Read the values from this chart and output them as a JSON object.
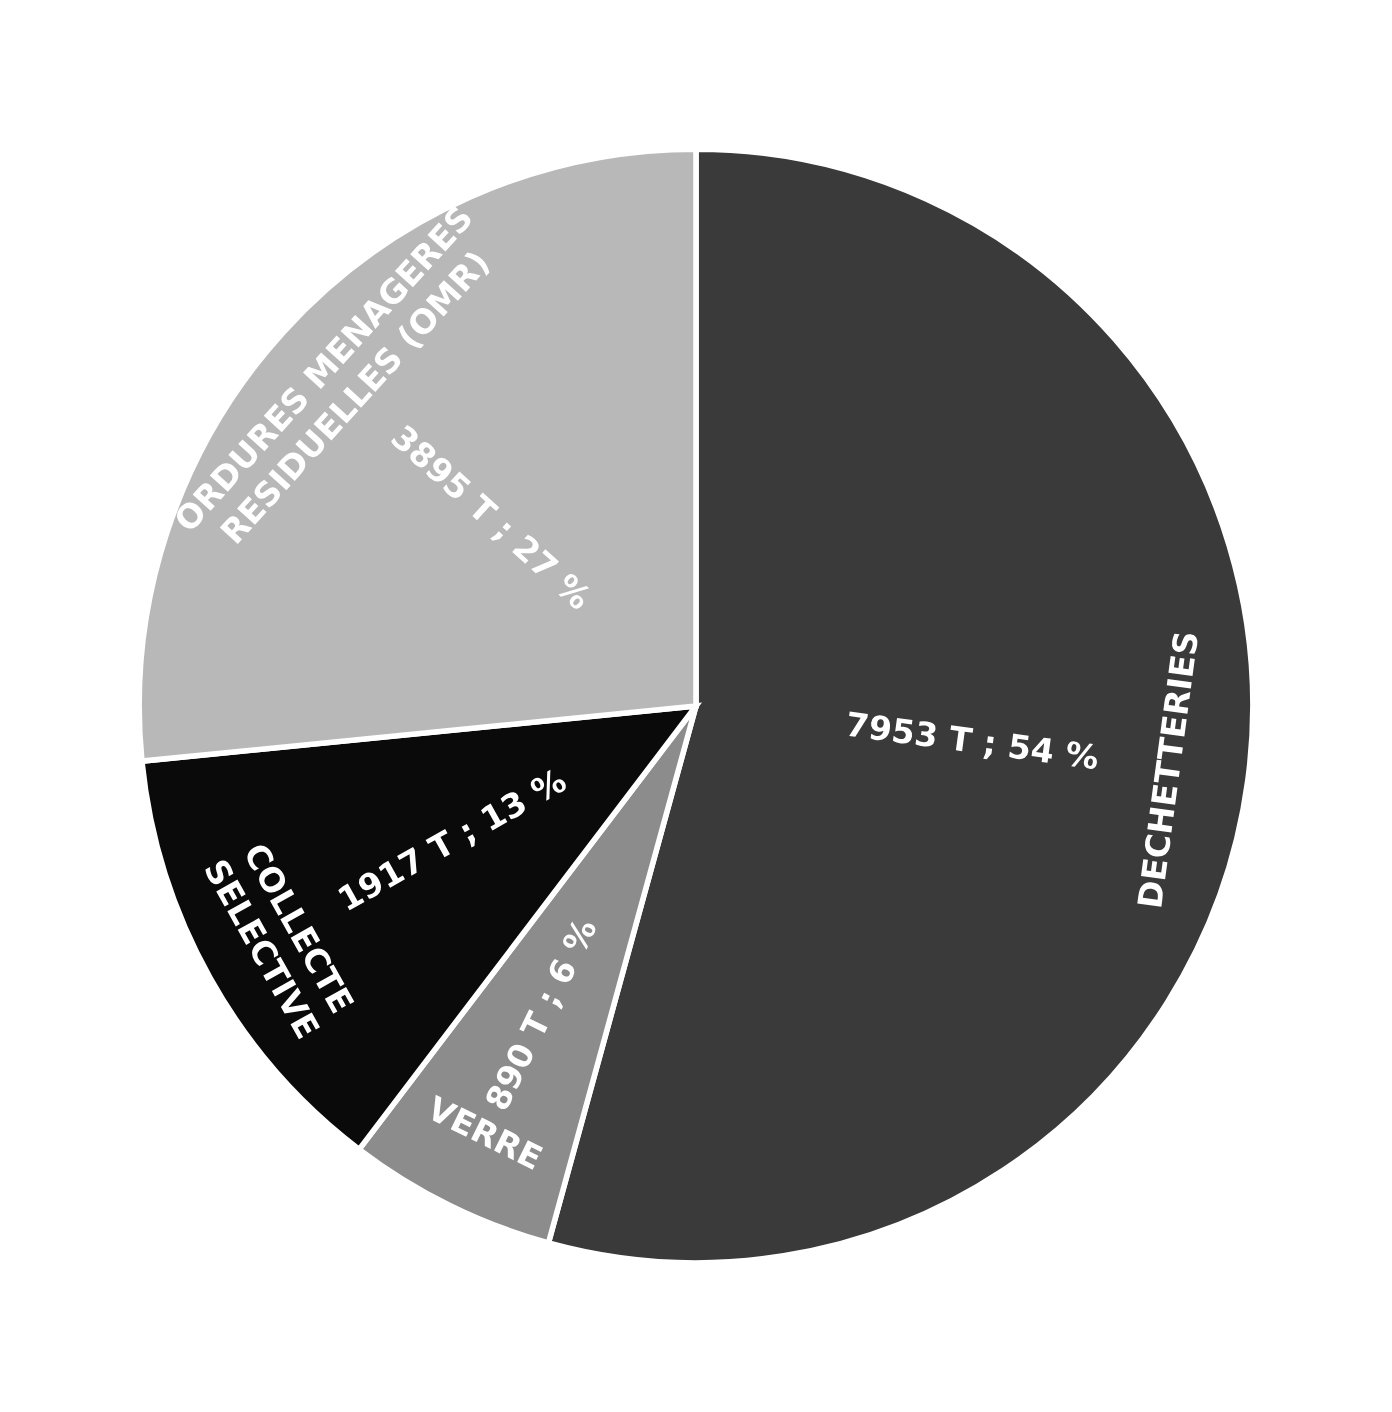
{
  "chart_data": {
    "type": "pie",
    "categories": [
      "DECHETTERIES",
      "VERRE",
      "COLLECTE SELECTIVE",
      "ORDURES MENAGERES RESIDUELLES (OMR)"
    ],
    "values": [
      7953,
      890,
      1917,
      3895
    ],
    "colors": [
      "#3a3a3a",
      "#8c8c8c",
      "#0a0a0a",
      "#b8b8b8"
    ],
    "value_labels": [
      "7953 T ; 54 %",
      "890 T ; 6 %",
      "1917 T ; 13 %",
      "3895 T ; 27 %"
    ]
  }
}
